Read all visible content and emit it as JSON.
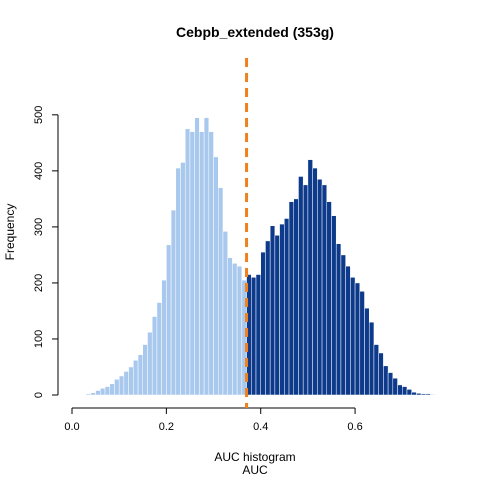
{
  "chart_data": {
    "type": "bar",
    "title": "Cebpb_extended (353g)",
    "xlabel_line1": "AUC histogram",
    "xlabel_line2": "AUC",
    "ylabel": "Frequency",
    "xlim": [
      0.0,
      0.78
    ],
    "ylim": [
      0,
      580
    ],
    "x_ticks": [
      0.0,
      0.2,
      0.4,
      0.6
    ],
    "x_tick_labels": [
      "0.0",
      "0.2",
      "0.4",
      "0.6"
    ],
    "y_ticks": [
      0,
      100,
      200,
      300,
      400,
      500
    ],
    "y_tick_labels": [
      "0",
      "100",
      "200",
      "300",
      "400",
      "500"
    ],
    "bin_width": 0.01,
    "threshold": 0.37,
    "colors": {
      "below_threshold": "#a9c8ee",
      "above_threshold": "#0d3a8a",
      "threshold_line": "#f07f1c"
    },
    "bins_x_start": [
      0.03,
      0.04,
      0.05,
      0.06,
      0.07,
      0.08,
      0.09,
      0.1,
      0.11,
      0.12,
      0.13,
      0.14,
      0.15,
      0.16,
      0.17,
      0.18,
      0.19,
      0.2,
      0.21,
      0.22,
      0.23,
      0.24,
      0.25,
      0.26,
      0.27,
      0.28,
      0.29,
      0.3,
      0.31,
      0.32,
      0.33,
      0.34,
      0.35,
      0.36,
      0.37,
      0.38,
      0.39,
      0.4,
      0.41,
      0.42,
      0.43,
      0.44,
      0.45,
      0.46,
      0.47,
      0.48,
      0.49,
      0.5,
      0.51,
      0.52,
      0.53,
      0.54,
      0.55,
      0.56,
      0.57,
      0.58,
      0.59,
      0.6,
      0.61,
      0.62,
      0.63,
      0.64,
      0.65,
      0.66,
      0.67,
      0.68,
      0.69,
      0.7,
      0.71,
      0.72,
      0.73,
      0.74,
      0.75,
      0.76
    ],
    "values": [
      2,
      4,
      8,
      12,
      15,
      20,
      28,
      34,
      42,
      50,
      62,
      72,
      90,
      112,
      140,
      165,
      205,
      268,
      330,
      405,
      415,
      475,
      470,
      495,
      470,
      495,
      470,
      425,
      370,
      292,
      245,
      235,
      230,
      205,
      215,
      210,
      215,
      255,
      275,
      302,
      285,
      305,
      315,
      345,
      350,
      390,
      375,
      420,
      405,
      385,
      375,
      345,
      320,
      270,
      250,
      230,
      210,
      200,
      185,
      155,
      130,
      90,
      75,
      52,
      40,
      30,
      18,
      15,
      10,
      5,
      3,
      2,
      2,
      1
    ]
  }
}
